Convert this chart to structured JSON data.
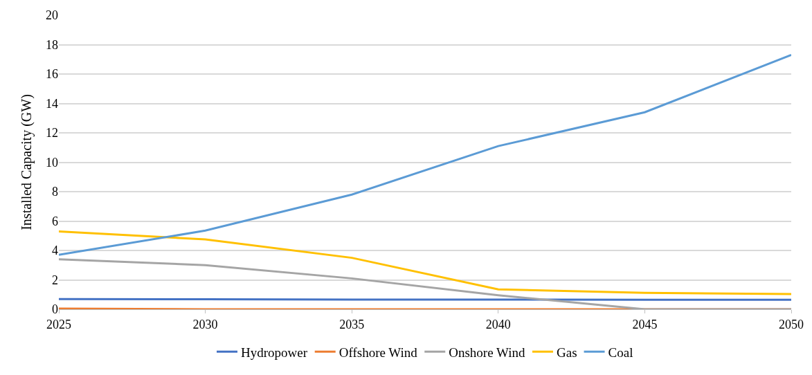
{
  "chart_data": {
    "type": "line",
    "ylabel": "Installed Capacity (GW)",
    "x": [
      2025,
      2030,
      2035,
      2040,
      2045,
      2050
    ],
    "series": [
      {
        "name": "Hydropower",
        "color": "#4472c4",
        "values": [
          0.7,
          0.68,
          0.66,
          0.66,
          0.65,
          0.65
        ]
      },
      {
        "name": "Offshore Wind",
        "color": "#ed7d31",
        "values": [
          0.05,
          0,
          0,
          0,
          0,
          0
        ]
      },
      {
        "name": "Onshore Wind",
        "color": "#a5a5a5",
        "values": [
          3.4,
          3.0,
          2.1,
          0.95,
          0,
          0
        ]
      },
      {
        "name": "Gas",
        "color": "#ffc000",
        "values": [
          5.3,
          4.75,
          3.5,
          1.35,
          1.12,
          1.03
        ]
      },
      {
        "name": "Coal",
        "color": "#5b9bd5",
        "values": [
          3.7,
          5.35,
          7.8,
          11.1,
          13.4,
          17.3
        ]
      }
    ],
    "xlim": [
      2025,
      2050
    ],
    "xticks": [
      2025,
      2030,
      2035,
      2040,
      2045,
      2050
    ],
    "ylim": [
      0,
      20
    ],
    "yticks": [
      0,
      2,
      4,
      6,
      8,
      10,
      12,
      14,
      16,
      18,
      20
    ],
    "grid": "y",
    "legend": "bottom",
    "marker": "none",
    "line_style": "solid"
  }
}
